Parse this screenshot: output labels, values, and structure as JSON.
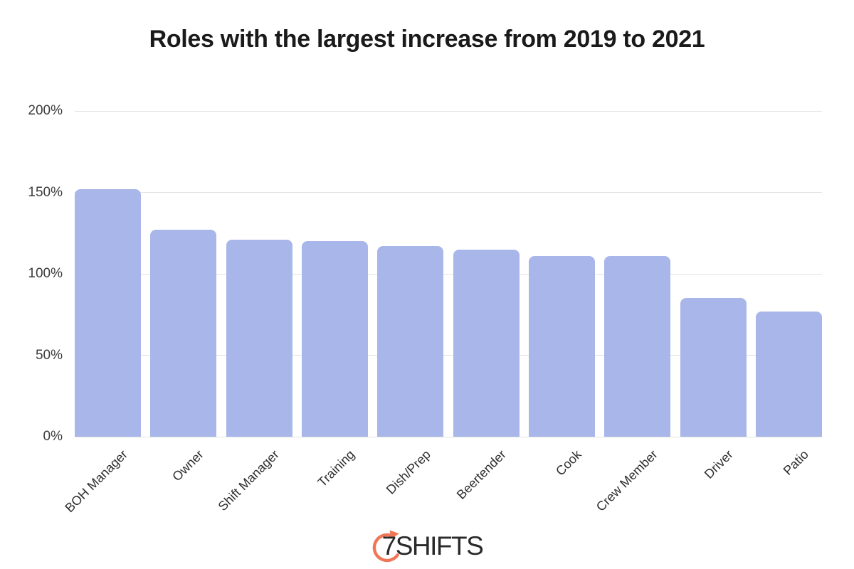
{
  "page": {
    "background_color": "#ffffff"
  },
  "chart_data": {
    "type": "bar",
    "title": "Roles with the largest increase from 2019 to 2021",
    "categories": [
      "BOH Manager",
      "Owner",
      "Shift Manager",
      "Training",
      "Dish/Prep",
      "Beertender",
      "Cook",
      "Crew Member",
      "Driver",
      "Patio"
    ],
    "values": [
      152,
      127,
      121,
      120,
      117,
      115,
      111,
      111,
      85,
      77
    ],
    "value_unit": "%",
    "xlabel": "",
    "ylabel": "",
    "ylim": [
      0,
      200
    ],
    "ytick_step": 50,
    "ytick_labels": [
      "0%",
      "50%",
      "100%",
      "150%",
      "200%"
    ],
    "grid": true,
    "legend": false,
    "bar_color": "#a8b6e9",
    "gridline_color": "#e2e2e2",
    "title_color": "#1a1a1a",
    "tick_label_color": "#3c3c3c"
  },
  "branding": {
    "logo_text": "7SHIFTS",
    "icon": "timer-arrow-icon",
    "accent_color": "#ef7757",
    "text_color": "#2a2a2a"
  }
}
